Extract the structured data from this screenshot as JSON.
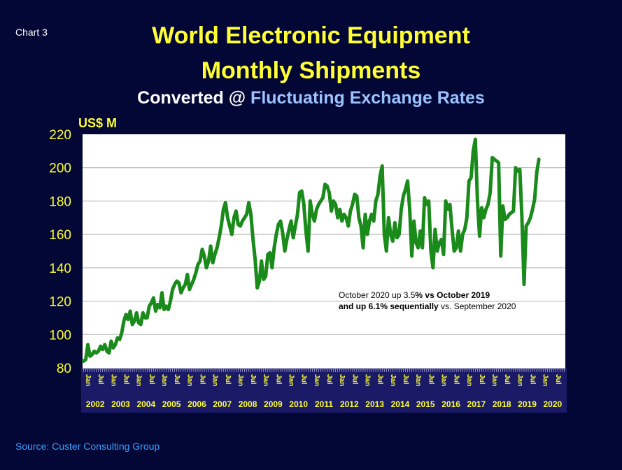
{
  "chart_label": "Chart 3",
  "title_line1": "World Electronic Equipment",
  "title_line2": "Monthly Shipments",
  "subtitle_part1": "Converted @ ",
  "subtitle_part2": "Fluctuating Exchange Rates",
  "source": "Source: Custer Consulting Group",
  "colors": {
    "background": "#030735",
    "title": "#ffff33",
    "line": "#1a8a1a",
    "plot_bg": "#ffffff",
    "source": "#3aa0ff"
  },
  "chart_data": {
    "type": "line",
    "ylabel": "US$ M",
    "ylim": [
      80,
      220
    ],
    "yticks": [
      80,
      100,
      120,
      140,
      160,
      180,
      200,
      220
    ],
    "grid": true,
    "start": "2002-01",
    "month_tick_labels": [
      "Jan",
      "Jul"
    ],
    "years": [
      "2002",
      "2003",
      "2004",
      "2005",
      "2006",
      "2007",
      "2008",
      "2009",
      "2010",
      "2011",
      "2012",
      "2013",
      "2014",
      "2015",
      "2016",
      "2017",
      "2018",
      "2019",
      "2020"
    ],
    "annotation": {
      "line1_a": "October 2020 up 3.5",
      "line1_b": "% vs October 2019",
      "line2_a": "and up 6.1% sequentially",
      "line2_b": " vs. September 2020"
    },
    "series": [
      {
        "values": [
          84,
          85,
          94,
          87,
          88,
          90,
          89,
          90,
          93,
          91,
          94,
          90,
          89,
          96,
          92,
          94,
          98,
          97,
          101,
          108,
          112,
          109,
          114,
          106,
          108,
          113,
          107,
          106,
          113,
          110,
          110,
          117,
          119,
          122,
          114,
          118,
          116,
          125,
          115,
          117,
          115,
          120,
          127,
          130,
          132,
          131,
          125,
          128,
          130,
          136,
          127,
          130,
          133,
          137,
          142,
          144,
          151,
          147,
          140,
          144,
          153,
          143,
          148,
          152,
          158,
          165,
          175,
          179,
          170,
          165,
          160,
          170,
          174,
          166,
          165,
          168,
          170,
          172,
          179,
          172,
          157,
          145,
          128,
          132,
          144,
          133,
          135,
          148,
          149,
          140,
          152,
          160,
          166,
          168,
          161,
          150,
          157,
          163,
          168,
          158,
          165,
          172,
          185,
          186,
          178,
          162,
          150,
          180,
          172,
          168,
          175,
          178,
          180,
          182,
          190,
          189,
          185,
          174,
          180,
          178,
          170,
          175,
          168,
          172,
          170,
          165,
          174,
          178,
          184,
          183,
          170,
          165,
          152,
          172,
          160,
          168,
          172,
          168,
          180,
          184,
          195,
          201,
          160,
          150,
          170,
          160,
          156,
          167,
          158,
          160,
          175,
          183,
          187,
          192,
          175,
          147,
          168,
          155,
          152,
          162,
          152,
          182,
          178,
          180,
          150,
          140,
          163,
          150,
          155,
          157,
          148,
          180,
          175,
          178,
          163,
          150,
          152,
          162,
          150,
          160,
          163,
          170,
          192,
          194,
          210,
          217,
          180,
          159,
          176,
          170,
          175,
          178,
          185,
          206,
          205,
          204,
          203,
          147,
          177,
          169,
          170,
          172,
          173,
          174,
          200,
          198,
          199,
          170,
          130,
          165,
          167,
          170,
          175,
          181,
          197,
          205
        ]
      }
    ]
  }
}
